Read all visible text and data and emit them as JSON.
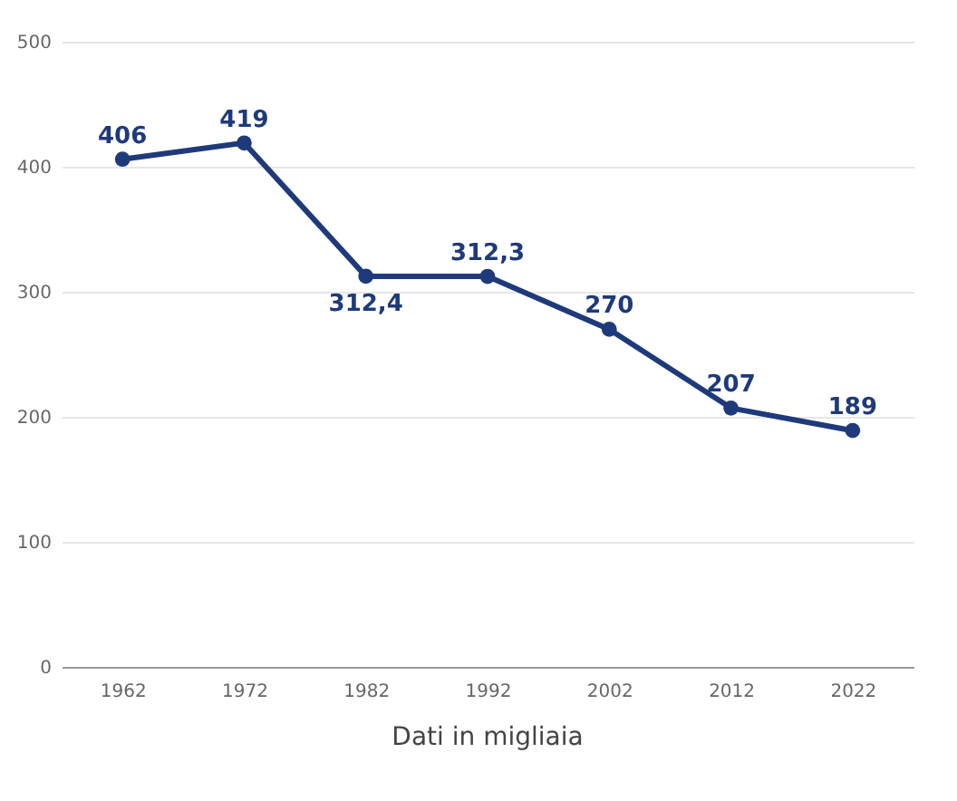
{
  "chart_data": {
    "type": "line",
    "categories": [
      "1962",
      "1972",
      "1982",
      "1992",
      "2002",
      "2012",
      "2022"
    ],
    "series": [
      {
        "color": "#1f3a7a",
        "values": [
          406,
          419,
          312.4,
          312.3,
          270,
          207,
          189
        ],
        "value_labels": [
          "406",
          "419",
          "312,4",
          "312,3",
          "270",
          "207",
          "189"
        ]
      }
    ],
    "ylim": [
      0,
      500
    ],
    "yticks": [
      0,
      100,
      200,
      300,
      400,
      500
    ],
    "grid": "y",
    "marker": "circle",
    "line_style": "solid",
    "legend": false,
    "annotations": [
      "Dati in migliaia"
    ]
  }
}
